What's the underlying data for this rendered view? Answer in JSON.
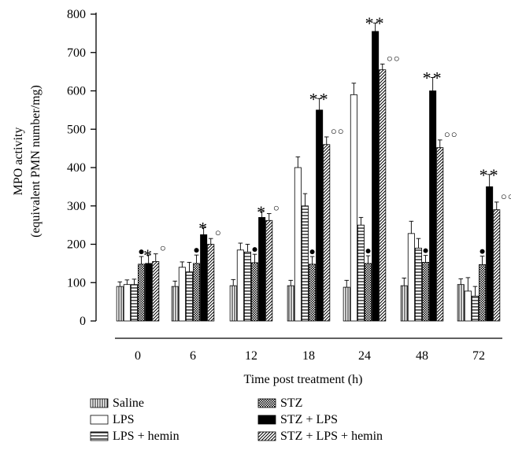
{
  "chart_data": {
    "type": "bar",
    "title": "",
    "xlabel": "Time post treatment (h)",
    "ylabel_line1": "MPO activity",
    "ylabel_line2": "(equivalent PMN number/mg)",
    "ylim": [
      0,
      800
    ],
    "yticks": [
      0,
      100,
      200,
      300,
      400,
      500,
      600,
      700,
      800
    ],
    "categories": [
      "0",
      "6",
      "12",
      "18",
      "24",
      "48",
      "72"
    ],
    "series": [
      {
        "name": "Saline",
        "pattern": "vertical-stripes",
        "values": [
          90,
          90,
          92,
          92,
          88,
          92,
          95
        ],
        "errors": [
          12,
          14,
          16,
          14,
          18,
          20,
          15
        ],
        "marks": [
          "",
          "",
          "",
          "",
          "",
          "",
          ""
        ]
      },
      {
        "name": "LPS",
        "pattern": "open",
        "values": [
          95,
          140,
          185,
          400,
          590,
          228,
          78
        ],
        "errors": [
          12,
          14,
          18,
          28,
          30,
          32,
          35
        ],
        "marks": [
          "",
          "",
          "",
          "",
          "",
          "",
          ""
        ]
      },
      {
        "name": "LPS + hemin",
        "pattern": "horizontal-stripes",
        "values": [
          95,
          128,
          180,
          300,
          250,
          190,
          65
        ],
        "errors": [
          14,
          25,
          20,
          32,
          20,
          25,
          25
        ],
        "marks": [
          "",
          "",
          "",
          "",
          "",
          "",
          ""
        ]
      },
      {
        "name": "STZ",
        "pattern": "checker",
        "values": [
          148,
          150,
          152,
          148,
          150,
          153,
          147
        ],
        "errors": [
          20,
          22,
          22,
          20,
          20,
          18,
          22
        ],
        "marks": [
          "●",
          "●",
          "●",
          "●",
          "●",
          "●",
          "●"
        ]
      },
      {
        "name": "STZ + LPS",
        "pattern": "solid",
        "values": [
          150,
          225,
          270,
          550,
          755,
          600,
          350
        ],
        "errors": [
          22,
          18,
          15,
          30,
          22,
          35,
          32
        ],
        "marks": [
          "*",
          "*",
          "*",
          "**",
          "**",
          "**",
          "**"
        ]
      },
      {
        "name": "STZ + LPS + hemin",
        "pattern": "diagonal",
        "values": [
          155,
          200,
          262,
          460,
          655,
          452,
          290
        ],
        "errors": [
          20,
          15,
          18,
          20,
          15,
          20,
          20
        ],
        "marks": [
          "○",
          "○",
          "○",
          "○○",
          "○○",
          "○○",
          "○○"
        ]
      }
    ],
    "legend_position": "bottom"
  }
}
